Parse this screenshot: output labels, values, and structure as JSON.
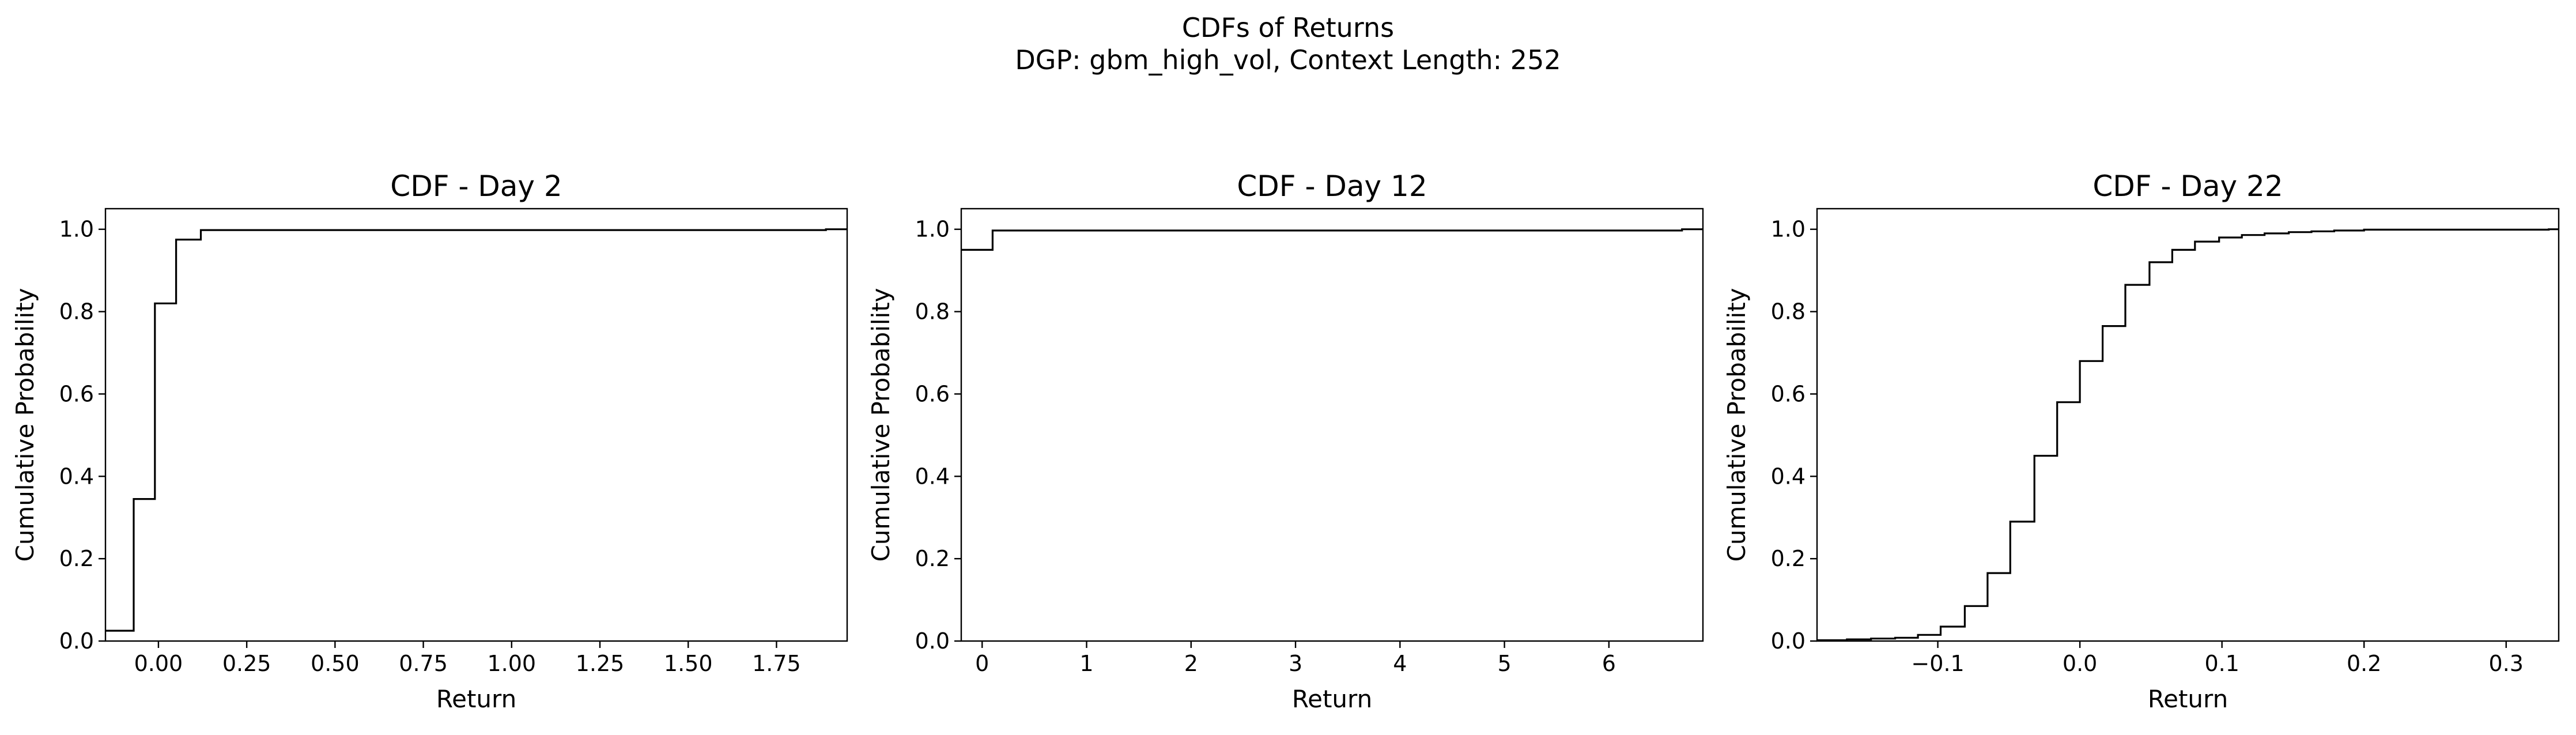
{
  "figure": {
    "title": "CDFs of Returns",
    "subtitle": "DGP: gbm_high_vol, Context Length: 252"
  },
  "chart_data": [
    {
      "type": "line",
      "step": true,
      "title": "CDF - Day 2",
      "xlabel": "Return",
      "ylabel": "Cumulative Probability",
      "xlim": [
        -0.15,
        1.95
      ],
      "ylim": [
        0,
        1.05
      ],
      "xticks": [
        0.0,
        0.25,
        0.5,
        0.75,
        1.0,
        1.25,
        1.5,
        1.75
      ],
      "xtick_labels": [
        "0.00",
        "0.25",
        "0.50",
        "0.75",
        "1.00",
        "1.25",
        "1.50",
        "1.75"
      ],
      "yticks": [
        0,
        0.2,
        0.4,
        0.6,
        0.8,
        1.0
      ],
      "ytick_labels": [
        "0.0",
        "0.2",
        "0.4",
        "0.6",
        "0.8",
        "1.0"
      ],
      "color": "#000000",
      "x": [
        -0.15,
        -0.07,
        -0.01,
        0.05,
        0.12,
        1.89,
        1.95
      ],
      "y": [
        0.025,
        0.345,
        0.82,
        0.975,
        0.998,
        1.0,
        1.0
      ]
    },
    {
      "type": "line",
      "step": true,
      "title": "CDF - Day 12",
      "xlabel": "Return",
      "ylabel": "Cumulative Probability",
      "xlim": [
        -0.2,
        6.9
      ],
      "ylim": [
        0,
        1.05
      ],
      "xticks": [
        0,
        1,
        2,
        3,
        4,
        5,
        6
      ],
      "xtick_labels": [
        "0",
        "1",
        "2",
        "3",
        "4",
        "5",
        "6"
      ],
      "yticks": [
        0,
        0.2,
        0.4,
        0.6,
        0.8,
        1.0
      ],
      "ytick_labels": [
        "0.0",
        "0.2",
        "0.4",
        "0.6",
        "0.8",
        "1.0"
      ],
      "color": "#000000",
      "x": [
        -0.2,
        0.1,
        6.7,
        6.9
      ],
      "y": [
        0.95,
        0.997,
        1.0,
        1.0
      ]
    },
    {
      "type": "line",
      "step": true,
      "title": "CDF - Day 22",
      "xlabel": "Return",
      "ylabel": "Cumulative Probability",
      "xlim": [
        -0.185,
        0.337
      ],
      "ylim": [
        0,
        1.05
      ],
      "xticks": [
        -0.1,
        0.0,
        0.1,
        0.2,
        0.3
      ],
      "xtick_labels": [
        "−0.1",
        "0.0",
        "0.1",
        "0.2",
        "0.3"
      ],
      "yticks": [
        0,
        0.2,
        0.4,
        0.6,
        0.8,
        1.0
      ],
      "ytick_labels": [
        "0.0",
        "0.2",
        "0.4",
        "0.6",
        "0.8",
        "1.0"
      ],
      "color": "#000000",
      "x": [
        -0.185,
        -0.164,
        -0.147,
        -0.13,
        -0.114,
        -0.098,
        -0.081,
        -0.065,
        -0.049,
        -0.032,
        -0.016,
        0.0,
        0.016,
        0.032,
        0.049,
        0.065,
        0.081,
        0.098,
        0.114,
        0.13,
        0.147,
        0.163,
        0.179,
        0.2,
        0.33,
        0.337
      ],
      "y": [
        0.002,
        0.004,
        0.006,
        0.008,
        0.015,
        0.035,
        0.085,
        0.165,
        0.29,
        0.45,
        0.58,
        0.68,
        0.765,
        0.865,
        0.92,
        0.95,
        0.97,
        0.98,
        0.986,
        0.99,
        0.993,
        0.995,
        0.997,
        0.999,
        1.0,
        1.0
      ]
    }
  ]
}
